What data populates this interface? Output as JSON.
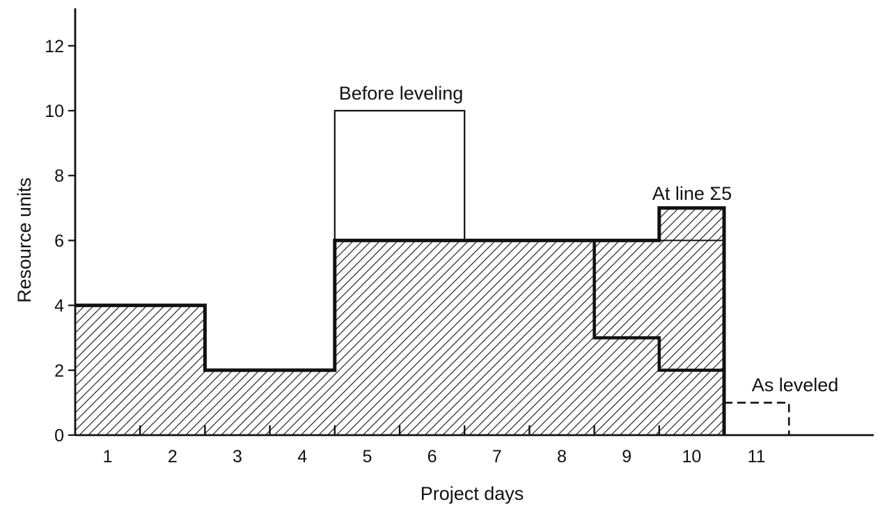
{
  "chart_data": {
    "type": "area",
    "xlabel": "Project days",
    "ylabel": "Resource units",
    "x_tick_labels": [
      "1",
      "2",
      "3",
      "4",
      "5",
      "6",
      "7",
      "8",
      "9",
      "10",
      "11"
    ],
    "y_ticks": [
      0,
      2,
      4,
      6,
      8,
      10,
      12
    ],
    "xlim": [
      0,
      12.5
    ],
    "ylim": [
      0,
      13
    ],
    "grid": false,
    "series": [
      {
        "name": "Before leveling",
        "steps": [
          {
            "from": 0,
            "to": 2,
            "value": 4
          },
          {
            "from": 2,
            "to": 4,
            "value": 2
          },
          {
            "from": 4,
            "to": 6,
            "value": 10
          },
          {
            "from": 6,
            "to": 8,
            "value": 6
          },
          {
            "from": 8,
            "to": 9,
            "value": 6
          },
          {
            "from": 9,
            "to": 10,
            "value": 6
          }
        ]
      },
      {
        "name": "As leveled",
        "steps": [
          {
            "from": 0,
            "to": 2,
            "value": 4
          },
          {
            "from": 2,
            "to": 4,
            "value": 2
          },
          {
            "from": 4,
            "to": 6,
            "value": 6
          },
          {
            "from": 6,
            "to": 8,
            "value": 6
          },
          {
            "from": 8,
            "to": 9,
            "value": 6
          },
          {
            "from": 9,
            "to": 10,
            "value": 7
          },
          {
            "from": 10,
            "to": 11,
            "value": 1
          }
        ]
      },
      {
        "name": "At line Σ5",
        "steps": [
          {
            "from": 8,
            "to": 9,
            "value": 3
          },
          {
            "from": 9,
            "to": 10,
            "value": 2
          }
        ]
      }
    ],
    "annotations": {
      "before": "Before leveling",
      "at_line": "At line Σ5",
      "as_leveled": "As leveled"
    }
  }
}
